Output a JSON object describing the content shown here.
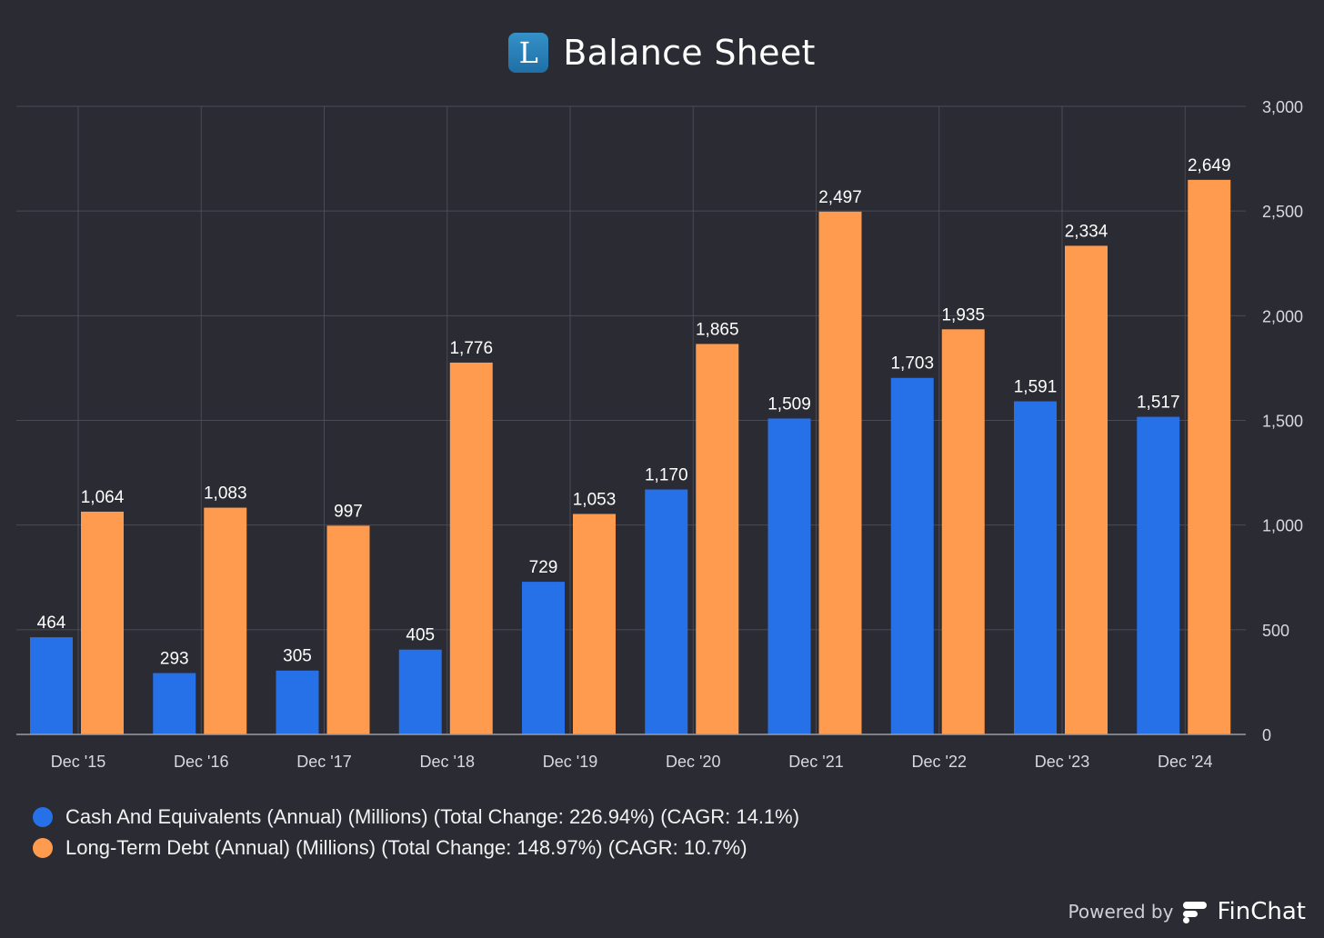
{
  "header": {
    "logo_letter": "L",
    "title": "Balance Sheet"
  },
  "colors": {
    "background": "#2a2b33",
    "cash": "#2670e8",
    "debt": "#ff9b4f",
    "grid": "#4a4b55"
  },
  "chart_data": {
    "type": "bar",
    "categories": [
      "Dec '15",
      "Dec '16",
      "Dec '17",
      "Dec '18",
      "Dec '19",
      "Dec '20",
      "Dec '21",
      "Dec '22",
      "Dec '23",
      "Dec '24"
    ],
    "series": [
      {
        "name": "Cash And Equivalents (Annual) (Millions) (Total Change: 226.94%) (CAGR: 14.1%)",
        "color": "#2670e8",
        "values": [
          464,
          293,
          305,
          405,
          729,
          1170,
          1509,
          1703,
          1591,
          1517
        ],
        "labels": [
          "464",
          "293",
          "305",
          "405",
          "729",
          "1,170",
          "1,509",
          "1,703",
          "1,591",
          "1,517"
        ]
      },
      {
        "name": "Long-Term Debt (Annual) (Millions) (Total Change: 148.97%) (CAGR: 10.7%)",
        "color": "#ff9b4f",
        "values": [
          1064,
          1083,
          997,
          1776,
          1053,
          1865,
          2497,
          1935,
          2334,
          2649
        ],
        "labels": [
          "1,064",
          "1,083",
          "997",
          "1,776",
          "1,053",
          "1,865",
          "2,497",
          "1,935",
          "2,334",
          "2,649"
        ]
      }
    ],
    "yticks": [
      0,
      500,
      1000,
      1500,
      2000,
      2500,
      3000
    ],
    "ytick_labels": [
      "0",
      "500",
      "1,000",
      "1,500",
      "2,000",
      "2,500",
      "3,000"
    ],
    "ylim": [
      0,
      3000
    ],
    "y_axis_side": "right",
    "grid": true,
    "legend_position": "bottom-left"
  },
  "legend": [
    {
      "label": "Cash And Equivalents (Annual) (Millions) (Total Change: 226.94%) (CAGR: 14.1%)",
      "color": "#2670e8"
    },
    {
      "label": "Long-Term Debt (Annual) (Millions) (Total Change: 148.97%) (CAGR: 10.7%)",
      "color": "#ff9b4f"
    }
  ],
  "footer": {
    "powered_by": "Powered by",
    "brand": "FinChat"
  }
}
